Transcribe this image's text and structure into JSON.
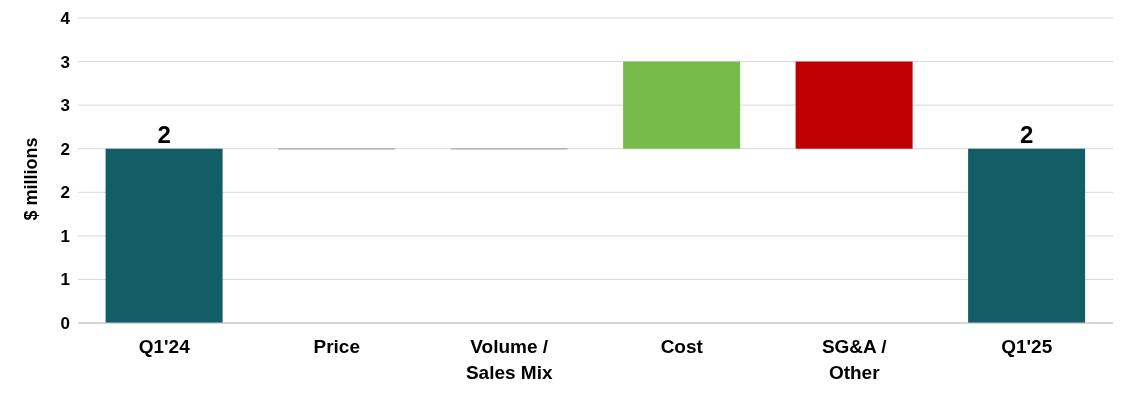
{
  "chart_data": {
    "type": "bar",
    "ylabel": "$ millions",
    "categories": [
      "Q1'24",
      "Price",
      "Volume / Sales Mix",
      "Cost",
      "SG&A / Other",
      "Q1'25"
    ],
    "values": [
      2,
      0,
      0,
      1,
      -1,
      2
    ],
    "base": [
      0,
      2,
      2,
      2,
      3,
      0
    ],
    "colors": [
      "#135e66",
      "#a6a6a6",
      "#a6a6a6",
      "#77bc4b",
      "#c00000",
      "#135e66"
    ],
    "value_labels": [
      "2",
      null,
      null,
      null,
      null,
      "2"
    ],
    "ylim": [
      0,
      3.5
    ],
    "yticks": [
      {
        "value": 0,
        "label": "0"
      },
      {
        "value": 0.5,
        "label": "1"
      },
      {
        "value": 1,
        "label": "1"
      },
      {
        "value": 1.5,
        "label": "2"
      },
      {
        "value": 2,
        "label": "2"
      },
      {
        "value": 2.5,
        "label": "3"
      },
      {
        "value": 3,
        "label": "3"
      },
      {
        "value": 3.5,
        "label": "4"
      }
    ],
    "grid": "y",
    "legend": false
  }
}
